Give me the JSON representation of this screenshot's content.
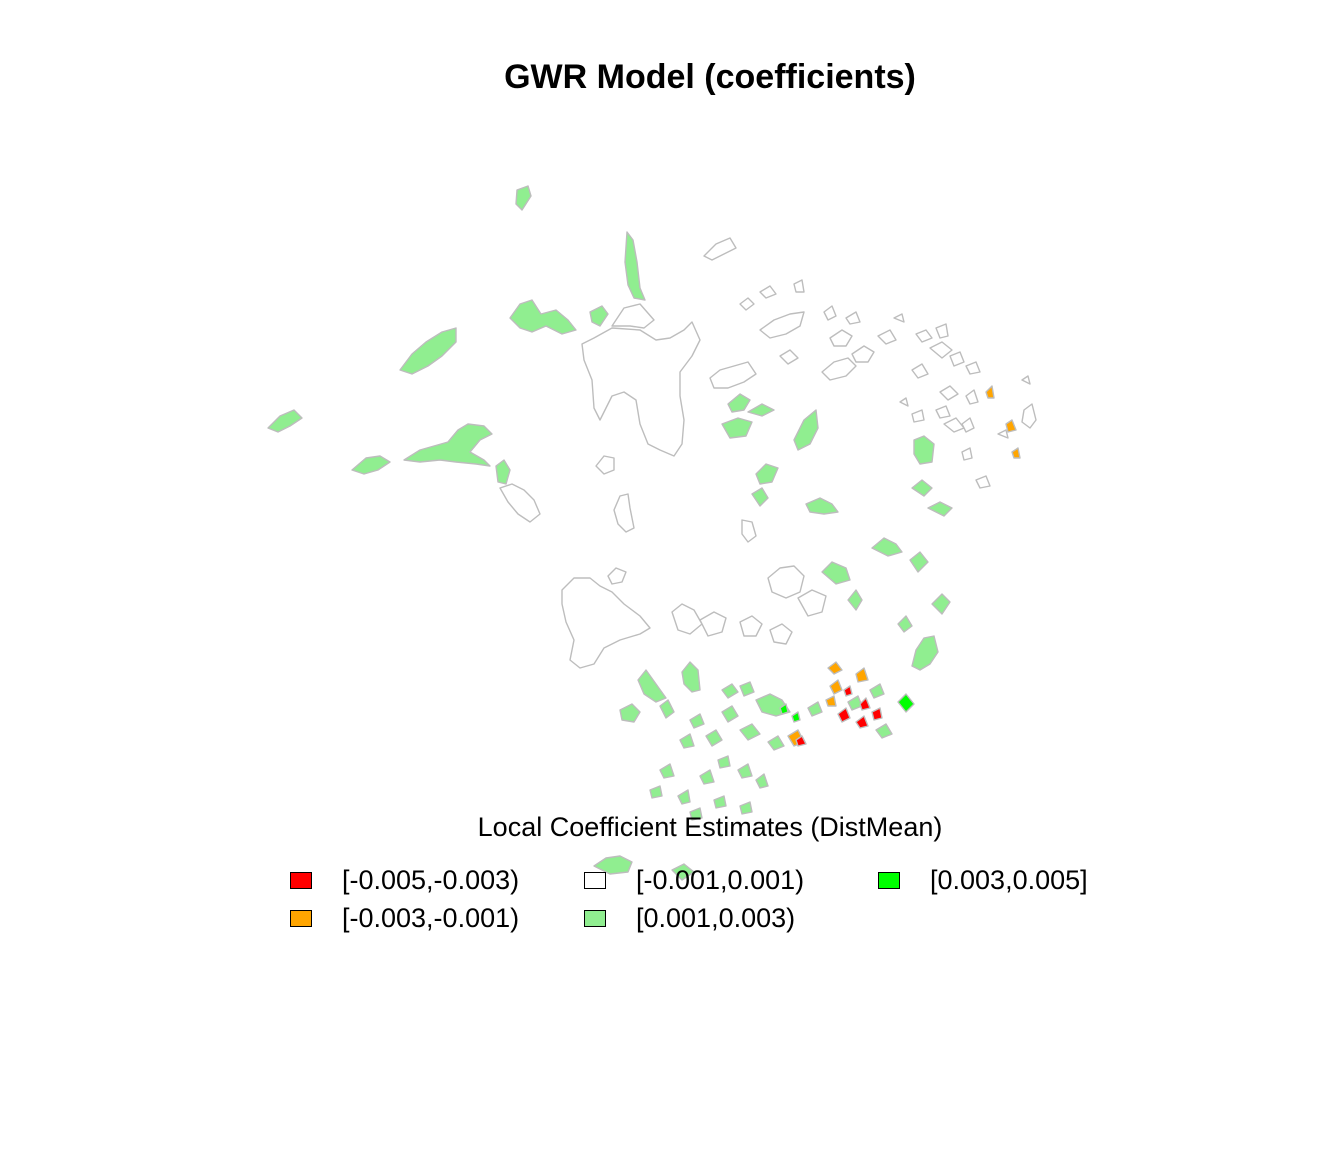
{
  "title": "GWR Model (coefficients)",
  "legend": {
    "title": "Local Coefficient Estimates (DistMean)",
    "items": [
      {
        "label": "[-0.005,-0.003)",
        "color": "#ff0000"
      },
      {
        "label": "[-0.003,-0.001)",
        "color": "#ffa500"
      },
      {
        "label": "[-0.001,0.001)",
        "color": "#ffffff"
      },
      {
        "label": "[0.001,0.003)",
        "color": "#90ee90"
      },
      {
        "label": "[0.003,0.005]",
        "color": "#00ff00"
      }
    ]
  },
  "colors": {
    "border": "#bdbdbd",
    "class_1": "#ff0000",
    "class_2": "#ffa500",
    "class_3": "#ffffff",
    "class_4": "#90ee90",
    "class_5": "#00ff00"
  }
}
